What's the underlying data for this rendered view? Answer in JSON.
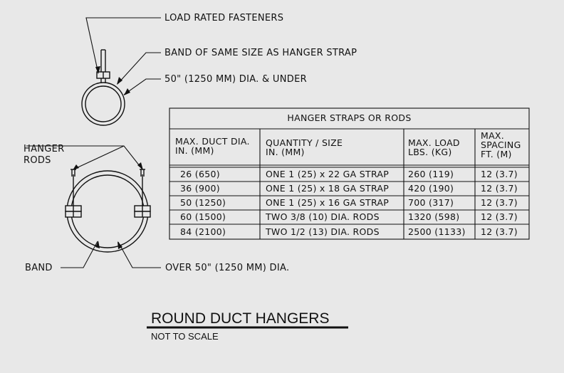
{
  "callouts": {
    "load_rated_fasteners": "LOAD RATED FASTENERS",
    "band_same_size": "BAND OF SAME SIZE AS HANGER STRAP",
    "dia_under": "50\" (1250 MM) DIA. & UNDER",
    "hanger": "HANGER",
    "rods": "RODS",
    "band": "BAND",
    "over": "OVER 50\" (1250 MM) DIA."
  },
  "table": {
    "title": "HANGER STRAPS OR RODS",
    "headers": [
      [
        "MAX. DUCT DIA.",
        "IN. (MM)"
      ],
      [
        "QUANTITY / SIZE",
        "IN. (MM)"
      ],
      [
        "MAX. LOAD",
        "LBS. (KG)"
      ],
      [
        "MAX.",
        "SPACING",
        "FT. (M)"
      ]
    ],
    "rows": [
      [
        "26 (650)",
        "ONE 1 (25) x 22 GA STRAP",
        "260 (119)",
        "12 (3.7)"
      ],
      [
        "36 (900)",
        "ONE 1 (25) x 18 GA STRAP",
        "420 (190)",
        "12 (3.7)"
      ],
      [
        "50 (1250)",
        "ONE 1 (25) x 16 GA STRAP",
        "700 (317)",
        "12 (3.7)"
      ],
      [
        "60 (1500)",
        "TWO 3/8 (10) DIA. RODS",
        "1320 (598)",
        "12 (3.7)"
      ],
      [
        "84 (2100)",
        "TWO 1/2 (13) DIA. RODS",
        "2500 (1133)",
        "12 (3.7)"
      ]
    ]
  },
  "title": "ROUND DUCT HANGERS",
  "subtitle": "NOT TO SCALE"
}
